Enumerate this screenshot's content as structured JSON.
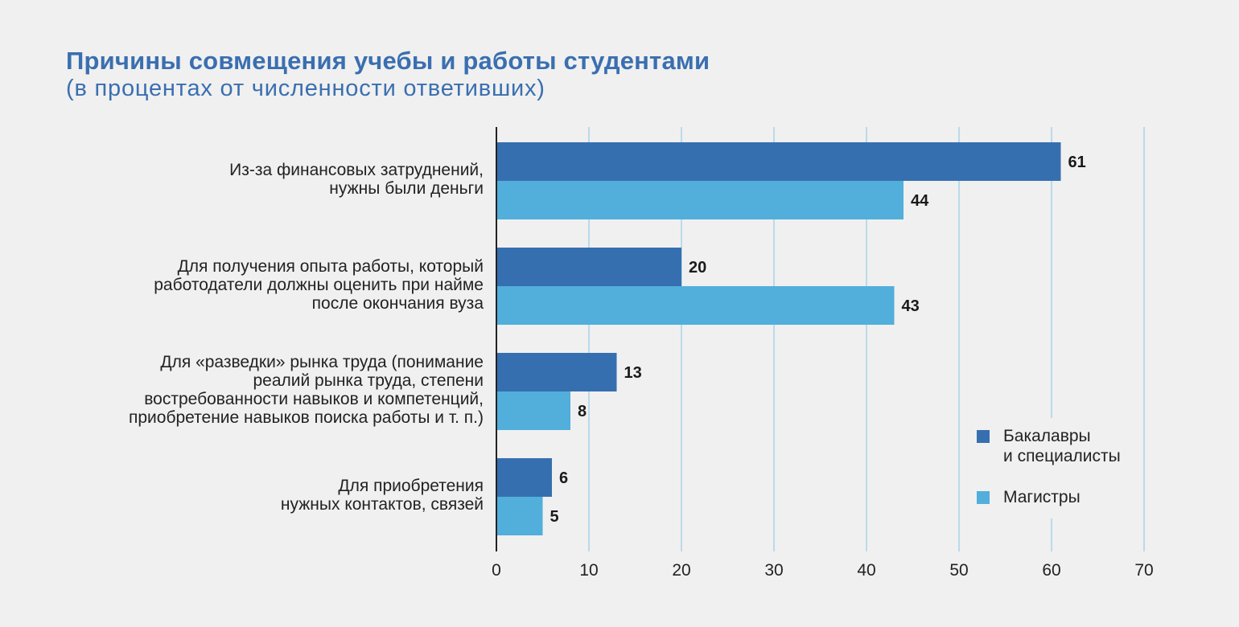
{
  "title": "Причины совмещения учебы и работы студентами",
  "subtitle": "(в процентах от численности ответивших)",
  "colors": {
    "series1": "#366fb0",
    "series2": "#52aedb",
    "grid": "#a8d3ea",
    "axis": "#222222"
  },
  "chart_data": {
    "type": "bar",
    "orientation": "horizontal",
    "title": "Причины совмещения учебы и работы студентами",
    "subtitle": "(в процентах от численности ответивших)",
    "categories": [
      "Из-за финансовых затруднений,\nнужны были деньги",
      "Для получения опыта работы, который\nработодатели должны оценить при найме\nпосле окончания вуза",
      "Для «разведки» рынка труда (понимание\nреалий рынка труда, степени\nвостребованности навыков и компетенций,\nприобретение навыков поиска работы и т. п.)",
      "Для приобретения\nнужных контактов, связей"
    ],
    "series": [
      {
        "name": "Бакалавры\nи специалисты",
        "values": [
          61,
          20,
          13,
          6
        ]
      },
      {
        "name": "Магистры",
        "values": [
          44,
          43,
          8,
          5
        ]
      }
    ],
    "xlim": [
      0,
      70
    ],
    "xticks": [
      0,
      10,
      20,
      30,
      40,
      50,
      60,
      70
    ],
    "grid": true,
    "legend_position": "bottom-right"
  }
}
